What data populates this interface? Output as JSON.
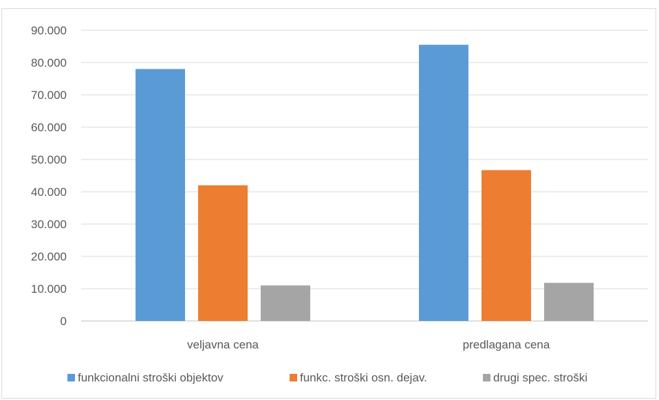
{
  "chart_data": {
    "type": "bar",
    "title": "",
    "xlabel": "",
    "ylabel": "",
    "categories": [
      "veljavna cena",
      "predlagana cena"
    ],
    "series": [
      {
        "name": "funkcionalni stroški objektov",
        "color": "#5b9bd5",
        "values": [
          78000,
          85500
        ]
      },
      {
        "name": "funkc. stroški osn. dejav.",
        "color": "#ed7d31",
        "values": [
          42000,
          46700
        ]
      },
      {
        "name": "drugi spec. stroški",
        "color": "#a5a5a5",
        "values": [
          11000,
          11800
        ]
      }
    ],
    "ylim": [
      0,
      90000
    ],
    "yticks": [
      0,
      10000,
      20000,
      30000,
      40000,
      50000,
      60000,
      70000,
      80000,
      90000
    ],
    "ytick_labels": [
      "0",
      "10.000",
      "20.000",
      "30.000",
      "40.000",
      "50.000",
      "60.000",
      "70.000",
      "80.000",
      "90.000"
    ],
    "grid": true,
    "legend_position": "bottom"
  }
}
